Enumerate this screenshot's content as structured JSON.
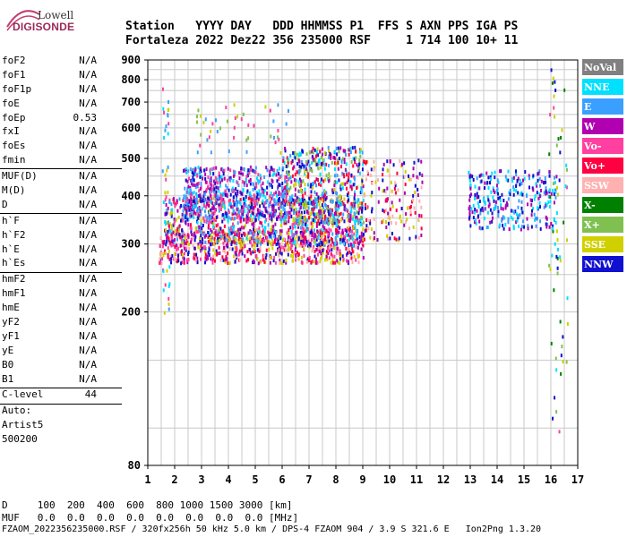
{
  "logo": {
    "top": "Lowell",
    "bottom": "DIGISONDE"
  },
  "header": {
    "line1": "Station   YYYY DAY   DDD HHMMSS P1  FFS S AXN PPS IGA PS",
    "line2": "Fortaleza 2022 Dez22 356 235000 RSF     1 714 100 10+ 11"
  },
  "parameters": [
    {
      "k": "foF2",
      "v": "N/A"
    },
    {
      "k": "foF1",
      "v": "N/A"
    },
    {
      "k": "foF1p",
      "v": "N/A"
    },
    {
      "k": "foE",
      "v": "N/A"
    },
    {
      "k": "foEp",
      "v": "0.53"
    },
    {
      "k": "fxI",
      "v": "N/A"
    },
    {
      "k": "foEs",
      "v": "N/A"
    },
    {
      "k": "fmin",
      "v": "N/A"
    },
    {
      "k": "MUF(D)",
      "v": "N/A"
    },
    {
      "k": "M(D)",
      "v": "N/A"
    },
    {
      "k": "D",
      "v": "N/A"
    },
    {
      "k": "h`F",
      "v": "N/A"
    },
    {
      "k": "h`F2",
      "v": "N/A"
    },
    {
      "k": "h`E",
      "v": "N/A"
    },
    {
      "k": "h`Es",
      "v": "N/A"
    },
    {
      "k": "hmF2",
      "v": "N/A"
    },
    {
      "k": "hmF1",
      "v": "N/A"
    },
    {
      "k": "hmE",
      "v": "N/A"
    },
    {
      "k": "yF2",
      "v": "N/A"
    },
    {
      "k": "yF1",
      "v": "N/A"
    },
    {
      "k": "yE",
      "v": "N/A"
    },
    {
      "k": "B0",
      "v": "N/A"
    },
    {
      "k": "B1",
      "v": "N/A"
    },
    {
      "k": "C-level",
      "v": "44"
    },
    {
      "k": "Auto:",
      "v": ""
    },
    {
      "k": "Artist5",
      "v": ""
    },
    {
      "k": "500200",
      "v": ""
    }
  ],
  "bottom": {
    "d_line": "D     100  200  400  600  800 1000 1500 3000 [km]",
    "muf_line": "MUF   0.0  0.0  0.0  0.0  0.0  0.0  0.0  0.0 [MHz]",
    "footer": "FZAOM_2022356235000.RSF / 320fx256h 50 kHz 5.0 km / DPS-4 FZAOM 904 / 3.9 S 321.6 E   Ion2Png 1.3.20"
  },
  "chart_data": {
    "type": "scatter",
    "title": "",
    "xlabel": "",
    "ylabel": "",
    "x_ticks": [
      1,
      2,
      3,
      4,
      5,
      6,
      7,
      8,
      9,
      10,
      11,
      12,
      13,
      14,
      15,
      16,
      17
    ],
    "y_ticks": [
      80,
      200,
      300,
      400,
      500,
      600,
      700,
      800,
      900
    ],
    "xlim": [
      1,
      17
    ],
    "y_scale": "log",
    "ylim": [
      80,
      900
    ],
    "grid": true,
    "legend_position": "right",
    "legend": [
      {
        "name": "NoVal",
        "color": "#808080"
      },
      {
        "name": "NNE",
        "color": "#00e0ff"
      },
      {
        "name": "E",
        "color": "#3aa0ff"
      },
      {
        "name": "W",
        "color": "#b000b0"
      },
      {
        "name": "Vo-",
        "color": "#ff40a0"
      },
      {
        "name": "Vo+",
        "color": "#ff0040"
      },
      {
        "name": "SSW",
        "color": "#ffb0b0"
      },
      {
        "name": "X-",
        "color": "#008000"
      },
      {
        "name": "X+",
        "color": "#80c050"
      },
      {
        "name": "SSE",
        "color": "#d0d000"
      },
      {
        "name": "NNW",
        "color": "#1010d0"
      }
    ],
    "clusters": [
      {
        "x0": 1.4,
        "x1": 9.0,
        "y0": 270,
        "y1": 330,
        "colors": [
          "#ff0040",
          "#ff40a0",
          "#ffb0b0",
          "#d0d000",
          "#b000b0",
          "#1010d0"
        ],
        "n": 700
      },
      {
        "x0": 1.6,
        "x1": 9.0,
        "y0": 300,
        "y1": 400,
        "colors": [
          "#ff0040",
          "#b000b0",
          "#1010d0",
          "#ff40a0",
          "#3aa0ff",
          "#00e0ff",
          "#d0d000"
        ],
        "n": 900
      },
      {
        "x0": 2.3,
        "x1": 6.2,
        "y0": 350,
        "y1": 480,
        "colors": [
          "#b000b0",
          "#3aa0ff",
          "#00e0ff",
          "#1010d0",
          "#ff40a0"
        ],
        "n": 600
      },
      {
        "x0": 6.0,
        "x1": 9.0,
        "y0": 340,
        "y1": 540,
        "colors": [
          "#d0d000",
          "#b000b0",
          "#00e0ff",
          "#3aa0ff",
          "#1010d0",
          "#ff0040",
          "#80c050"
        ],
        "n": 500
      },
      {
        "x0": 9.0,
        "x1": 11.2,
        "y0": 310,
        "y1": 500,
        "colors": [
          "#ffb0b0",
          "#ff0040",
          "#b000b0",
          "#1010d0",
          "#d0d000"
        ],
        "n": 160
      },
      {
        "x0": 12.9,
        "x1": 16.2,
        "y0": 330,
        "y1": 470,
        "colors": [
          "#b000b0",
          "#3aa0ff",
          "#1010d0",
          "#00e0ff"
        ],
        "n": 300
      },
      {
        "x0": 2.5,
        "x1": 6.2,
        "y0": 520,
        "y1": 700,
        "colors": [
          "#80c050",
          "#ff40a0",
          "#d0d000",
          "#3aa0ff"
        ],
        "n": 45
      },
      {
        "x0": 1.5,
        "x1": 1.8,
        "y0": 200,
        "y1": 860,
        "colors": [
          "#00e0ff",
          "#3aa0ff",
          "#d0d000",
          "#ff40a0"
        ],
        "n": 40
      },
      {
        "x0": 15.9,
        "x1": 16.6,
        "y0": 90,
        "y1": 880,
        "colors": [
          "#00e0ff",
          "#80c050",
          "#008000",
          "#ff40a0",
          "#d0d000",
          "#1010d0"
        ],
        "n": 60
      }
    ]
  }
}
